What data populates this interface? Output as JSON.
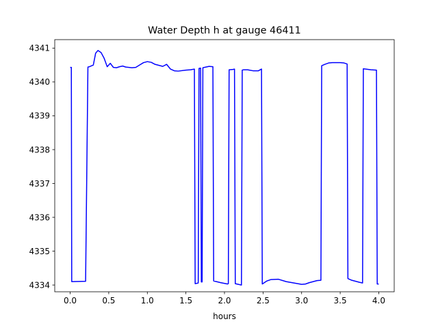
{
  "chart_data": {
    "type": "line",
    "title": "Water Depth h at gauge 46411",
    "xlabel": "hours",
    "ylabel": "",
    "xlim": [
      -0.2,
      4.2
    ],
    "ylim": [
      4333.8,
      4341.25
    ],
    "x_ticks": [
      0.0,
      0.5,
      1.0,
      1.5,
      2.0,
      2.5,
      3.0,
      3.5,
      4.0
    ],
    "x_tick_labels": [
      "0.0",
      "0.5",
      "1.0",
      "1.5",
      "2.0",
      "2.5",
      "3.0",
      "3.5",
      "4.0"
    ],
    "y_ticks": [
      4334,
      4335,
      4336,
      4337,
      4338,
      4339,
      4340,
      4341
    ],
    "y_tick_labels": [
      "4334",
      "4335",
      "4336",
      "4337",
      "4338",
      "4339",
      "4340",
      "4341"
    ],
    "grid": false,
    "legend": "none",
    "series": [
      {
        "color": "#0000ff",
        "x": [
          0.0,
          0.015,
          0.02,
          0.2,
          0.23,
          0.25,
          0.3,
          0.33,
          0.36,
          0.4,
          0.44,
          0.48,
          0.52,
          0.56,
          0.6,
          0.64,
          0.68,
          0.72,
          0.76,
          0.8,
          0.85,
          0.9,
          0.95,
          1.0,
          1.05,
          1.1,
          1.15,
          1.2,
          1.25,
          1.3,
          1.35,
          1.4,
          1.5,
          1.56,
          1.61,
          1.62,
          1.66,
          1.67,
          1.69,
          1.7,
          1.71,
          1.72,
          1.76,
          1.8,
          1.85,
          1.86,
          1.95,
          2.04,
          2.05,
          2.06,
          2.11,
          2.13,
          2.14,
          2.22,
          2.23,
          2.25,
          2.3,
          2.37,
          2.44,
          2.48,
          2.49,
          2.55,
          2.6,
          2.7,
          2.8,
          2.9,
          3.0,
          3.05,
          3.1,
          3.2,
          3.25,
          3.26,
          3.3,
          3.35,
          3.4,
          3.5,
          3.55,
          3.59,
          3.6,
          3.65,
          3.7,
          3.75,
          3.79,
          3.8,
          3.9,
          3.97,
          3.98,
          4.0
        ],
        "y": [
          4340.43,
          4340.43,
          4334.1,
          4334.11,
          4340.44,
          4340.45,
          4340.5,
          4340.85,
          4340.93,
          4340.87,
          4340.7,
          4340.45,
          4340.55,
          4340.43,
          4340.42,
          4340.45,
          4340.47,
          4340.44,
          4340.43,
          4340.42,
          4340.43,
          4340.5,
          4340.57,
          4340.6,
          4340.58,
          4340.52,
          4340.49,
          4340.46,
          4340.52,
          4340.38,
          4340.33,
          4340.32,
          4340.35,
          4340.36,
          4340.38,
          4334.04,
          4334.06,
          4340.4,
          4340.41,
          4334.09,
          4334.09,
          4340.42,
          4340.44,
          4340.46,
          4340.45,
          4334.12,
          4334.07,
          4334.03,
          4334.04,
          4340.36,
          4340.37,
          4340.38,
          4334.04,
          4334.0,
          4340.35,
          4340.36,
          4340.36,
          4340.33,
          4340.33,
          4340.38,
          4334.03,
          4334.12,
          4334.16,
          4334.17,
          4334.1,
          4334.06,
          4334.02,
          4334.03,
          4334.07,
          4334.13,
          4334.14,
          4340.48,
          4340.52,
          4340.56,
          4340.57,
          4340.57,
          4340.56,
          4340.53,
          4334.19,
          4334.14,
          4334.11,
          4334.08,
          4334.06,
          4340.39,
          4340.36,
          4340.35,
          4334.03,
          4334.03
        ]
      }
    ]
  }
}
